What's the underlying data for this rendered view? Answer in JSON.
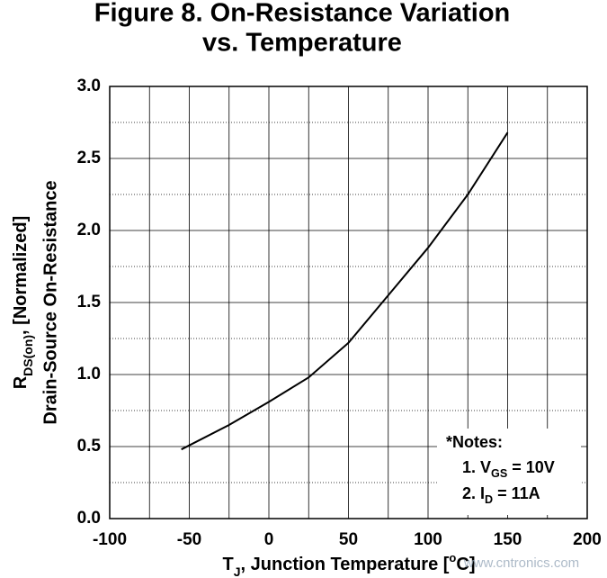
{
  "chart_data": {
    "type": "line",
    "title": [
      "Figure 8. On-Resistance Variation",
      "vs. Temperature"
    ],
    "x_label": [
      "T",
      "J",
      ", Junction Temperature [",
      "o",
      "C]"
    ],
    "y_label": {
      "line1": [
        "R",
        "DS(on)",
        ", [Normalized]"
      ],
      "line2": "Drain-Source On-Resistance"
    },
    "x": [
      -55,
      -25,
      0,
      25,
      50,
      75,
      100,
      125,
      150
    ],
    "series": [
      {
        "color": "#000000",
        "values": [
          0.48,
          0.65,
          0.81,
          0.98,
          1.22,
          1.55,
          1.88,
          2.25,
          2.68
        ]
      }
    ],
    "xlim": [
      -100,
      200
    ],
    "xticks": [
      -100,
      -50,
      0,
      50,
      100,
      150,
      200
    ],
    "ylim": [
      0,
      3
    ],
    "yticks": [
      0.0,
      0.5,
      1.0,
      1.5,
      2.0,
      2.5,
      3.0
    ],
    "ytick_labels": [
      "0.0",
      "0.5",
      "1.0",
      "1.5",
      "2.0",
      "2.5",
      "3.0"
    ],
    "grid": true,
    "notes": {
      "title": "*Notes:",
      "items": [
        [
          "1. V",
          "GS",
          " = 10V"
        ],
        [
          "2. I",
          "D",
          " = 11A"
        ]
      ]
    },
    "watermark": "www.cntronics.com"
  }
}
